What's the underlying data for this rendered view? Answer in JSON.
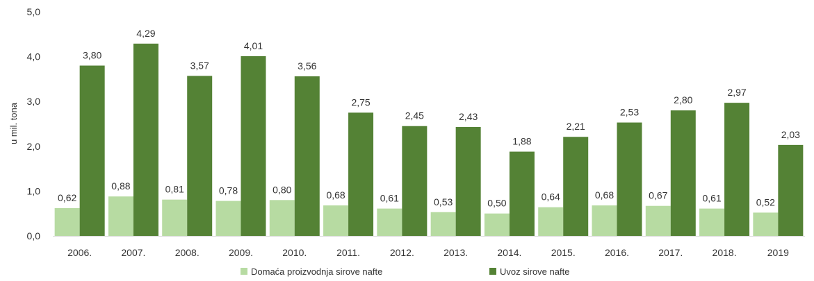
{
  "chart_data": {
    "type": "bar",
    "ylabel": "u mil. tona",
    "ylim": [
      0,
      5
    ],
    "yticks": [
      "0,0",
      "1,0",
      "2,0",
      "3,0",
      "4,0",
      "5,0"
    ],
    "grid": false,
    "legend_position": "bottom",
    "categories": [
      "2006.",
      "2007.",
      "2008.",
      "2009.",
      "2010.",
      "2011.",
      "2012.",
      "2013.",
      "2014.",
      "2015.",
      "2016.",
      "2017.",
      "2018.",
      "2019"
    ],
    "series": [
      {
        "name": "Domaća proizvodnja sirove nafte",
        "color": "#b7dba2",
        "values": [
          0.62,
          0.88,
          0.81,
          0.78,
          0.8,
          0.68,
          0.61,
          0.53,
          0.5,
          0.64,
          0.68,
          0.67,
          0.61,
          0.52
        ],
        "labels": [
          "0,62",
          "0,88",
          "0,81",
          "0,78",
          "0,80",
          "0,68",
          "0,61",
          "0,53",
          "0,50",
          "0,64",
          "0,68",
          "0,67",
          "0,61",
          "0,52"
        ]
      },
      {
        "name": "Uvoz sirove nafte",
        "color": "#548235",
        "values": [
          3.8,
          4.29,
          3.57,
          4.01,
          3.56,
          2.75,
          2.45,
          2.43,
          1.88,
          2.21,
          2.53,
          2.8,
          2.97,
          2.03
        ],
        "labels": [
          "3,80",
          "4,29",
          "3,57",
          "4,01",
          "3,56",
          "2,75",
          "2,45",
          "2,43",
          "1,88",
          "2,21",
          "2,53",
          "2,80",
          "2,97",
          "2,03"
        ]
      }
    ]
  }
}
